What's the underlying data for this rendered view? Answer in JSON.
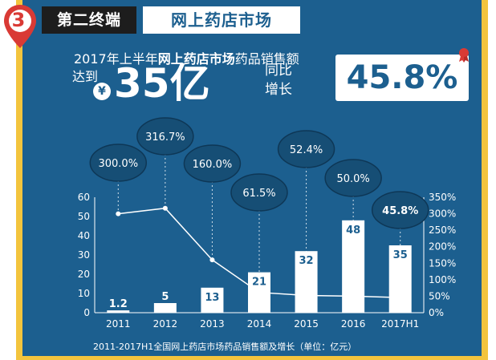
{
  "header": {
    "number": "3",
    "title_left": "第二终端",
    "title_right": "网上药店市场"
  },
  "headline": {
    "prefix": "2017年上半年",
    "bold": "网上药店市场",
    "suffix": "药品销售额",
    "reach": "达到",
    "currency": "¥",
    "amount": "35亿",
    "yoy_label": "同比增长",
    "yoy_value": "45.8%"
  },
  "colors": {
    "panel": "#1c5f8f",
    "frame": "#f3c43d",
    "bar": "#ffffff",
    "line": "#ffffff",
    "bubble": "#164e75"
  },
  "chart_data": {
    "type": "bar",
    "title": "",
    "caption": "2011-2017H1全国网上药店市场药品销售额及增长（单位：亿元）",
    "categories": [
      "2011",
      "2012",
      "2013",
      "2014",
      "2015",
      "2016",
      "2017H1"
    ],
    "series": [
      {
        "type": "bar",
        "axis": "left",
        "values": [
          1.2,
          5,
          13,
          21,
          32,
          48,
          35
        ],
        "labels": [
          "1.2",
          "5",
          "13",
          "21",
          "32",
          "48",
          "35"
        ]
      },
      {
        "type": "line",
        "axis": "right",
        "values": [
          300.0,
          316.7,
          160.0,
          61.5,
          52.4,
          50.0,
          45.8
        ],
        "labels": [
          "300.0%",
          "316.7%",
          "160.0%",
          "61.5%",
          "52.4%",
          "50.0%",
          "45.8%"
        ]
      }
    ],
    "ylim_left": [
      0,
      60
    ],
    "yticks_left": [
      "0",
      "10",
      "20",
      "30",
      "40",
      "50",
      "60"
    ],
    "ylim_right": [
      0,
      350
    ],
    "yticks_right": [
      "0%",
      "50%",
      "100%",
      "150%",
      "200%",
      "250%",
      "300%",
      "350%"
    ],
    "grid": false,
    "legend": "none"
  }
}
